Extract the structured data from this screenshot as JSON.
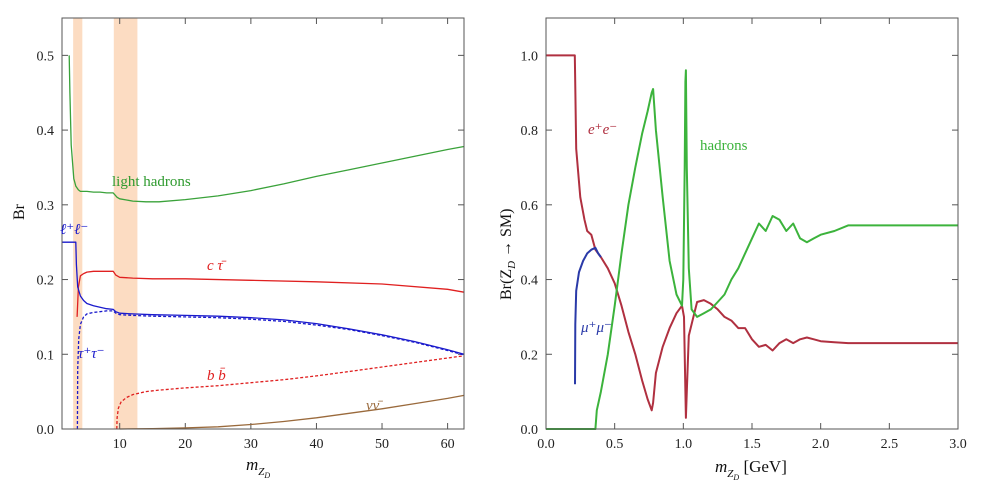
{
  "chart_data": [
    {
      "id": "left",
      "type": "line",
      "xlabel": "m_{Z_D}",
      "ylabel": "Br",
      "xlim": [
        1.2,
        62.5
      ],
      "ylim": [
        0,
        0.55
      ],
      "xticks": [
        10,
        20,
        30,
        40,
        50,
        60
      ],
      "yticks": [
        0.0,
        0.1,
        0.2,
        0.3,
        0.4,
        0.5
      ],
      "xtick_labels": [
        "10",
        "20",
        "30",
        "40",
        "50",
        "60"
      ],
      "ytick_labels": [
        "0.0",
        "0.1",
        "0.2",
        "0.3",
        "0.4",
        "0.5"
      ],
      "shaded_bands": [
        {
          "from": 2.9,
          "to": 4.3
        },
        {
          "from": 9.1,
          "to": 12.7
        }
      ],
      "band_color": "#fcdcc2",
      "series": [
        {
          "label": "light hadrons",
          "color": "#3aa23a",
          "dash": false,
          "x": [
            2.3,
            2.4,
            2.6,
            3.0,
            3.3,
            3.7,
            4.0,
            5,
            6,
            7,
            8,
            9.0,
            9.6,
            10,
            12,
            14,
            16,
            20,
            25,
            30,
            35,
            40,
            45,
            50,
            55,
            60,
            62.5
          ],
          "y": [
            0.5,
            0.45,
            0.38,
            0.335,
            0.325,
            0.32,
            0.318,
            0.318,
            0.317,
            0.317,
            0.316,
            0.316,
            0.31,
            0.308,
            0.305,
            0.304,
            0.304,
            0.307,
            0.312,
            0.319,
            0.328,
            0.338,
            0.347,
            0.356,
            0.365,
            0.374,
            0.378
          ]
        },
        {
          "label": "c τ̄",
          "color": "#e02020",
          "dash": false,
          "x": [
            3.5,
            3.7,
            4.0,
            4.5,
            5,
            6,
            7,
            8,
            9.0,
            9.4,
            10,
            12,
            15,
            20,
            30,
            40,
            50,
            60,
            62.5
          ],
          "y": [
            0.15,
            0.19,
            0.205,
            0.208,
            0.21,
            0.211,
            0.211,
            0.211,
            0.211,
            0.206,
            0.203,
            0.202,
            0.201,
            0.201,
            0.199,
            0.197,
            0.194,
            0.187,
            0.183
          ]
        },
        {
          "label": "ℓ⁺ℓ⁻",
          "color": "#1a1acc",
          "dash": false,
          "x": [
            1.2,
            3.3,
            3.4,
            3.6,
            4.0,
            4.5,
            5,
            6,
            7,
            8,
            9.0,
            9.4,
            10,
            12,
            15,
            20,
            25,
            30,
            35,
            40,
            45,
            50,
            55,
            60,
            62.5
          ],
          "y": [
            0.25,
            0.25,
            0.22,
            0.19,
            0.178,
            0.172,
            0.168,
            0.165,
            0.163,
            0.161,
            0.16,
            0.157,
            0.155,
            0.154,
            0.153,
            0.152,
            0.151,
            0.149,
            0.146,
            0.141,
            0.134,
            0.126,
            0.117,
            0.106,
            0.1
          ]
        },
        {
          "label": "τ⁺τ⁻",
          "color": "#1a1acc",
          "dash": true,
          "x": [
            3.55,
            3.6,
            3.75,
            4.0,
            4.5,
            5,
            6,
            7,
            8,
            9.0,
            9.4,
            10,
            12,
            15,
            20,
            25,
            30,
            35,
            40,
            45,
            50,
            55,
            60,
            62.5
          ],
          "y": [
            0.0,
            0.08,
            0.12,
            0.14,
            0.15,
            0.154,
            0.156,
            0.157,
            0.158,
            0.158,
            0.155,
            0.153,
            0.152,
            0.151,
            0.15,
            0.149,
            0.147,
            0.144,
            0.139,
            0.133,
            0.125,
            0.116,
            0.105,
            0.099
          ]
        },
        {
          "label": "b b̄",
          "color": "#e02020",
          "dash": true,
          "x": [
            9.55,
            9.6,
            9.8,
            10.2,
            11,
            12,
            14,
            16,
            20,
            25,
            30,
            35,
            40,
            45,
            50,
            55,
            60,
            62.5
          ],
          "y": [
            0.0,
            0.015,
            0.028,
            0.036,
            0.042,
            0.046,
            0.05,
            0.052,
            0.055,
            0.058,
            0.062,
            0.066,
            0.071,
            0.077,
            0.083,
            0.089,
            0.095,
            0.098
          ]
        },
        {
          "label": "νν̄",
          "color": "#9a6a3c",
          "dash": false,
          "x": [
            10,
            15,
            20,
            25,
            30,
            35,
            40,
            45,
            50,
            55,
            60,
            62.5
          ],
          "y": [
            0.0,
            0.0005,
            0.0015,
            0.003,
            0.006,
            0.01,
            0.015,
            0.021,
            0.027,
            0.034,
            0.041,
            0.045
          ]
        }
      ]
    },
    {
      "id": "right",
      "type": "line",
      "xlabel": "m_{Z_D} [GeV]",
      "ylabel": "Br(Z_D → SM)",
      "xlim": [
        0,
        3.0
      ],
      "ylim": [
        0,
        1.1
      ],
      "xticks": [
        0.0,
        0.5,
        1.0,
        1.5,
        2.0,
        2.5,
        3.0
      ],
      "yticks": [
        0.0,
        0.2,
        0.4,
        0.6,
        0.8,
        1.0
      ],
      "xtick_labels": [
        "0.0",
        "0.5",
        "1.0",
        "1.5",
        "2.0",
        "2.5",
        "3.0"
      ],
      "ytick_labels": [
        "0.0",
        "0.2",
        "0.4",
        "0.6",
        "0.8",
        "1.0"
      ],
      "series": [
        {
          "label": "e⁺e⁻",
          "color": "#b03040",
          "dash": false,
          "x": [
            0.0,
            0.21,
            0.212,
            0.22,
            0.25,
            0.28,
            0.3,
            0.33,
            0.36,
            0.4,
            0.45,
            0.5,
            0.55,
            0.6,
            0.65,
            0.7,
            0.74,
            0.77,
            0.78,
            0.8,
            0.85,
            0.9,
            0.95,
            0.99,
            1.005,
            1.015,
            1.019,
            1.025,
            1.04,
            1.08,
            1.1,
            1.15,
            1.2,
            1.25,
            1.3,
            1.35,
            1.4,
            1.45,
            1.5,
            1.55,
            1.6,
            1.65,
            1.7,
            1.75,
            1.8,
            1.85,
            1.9,
            1.95,
            2.0,
            2.1,
            2.2,
            2.5,
            3.0
          ],
          "y": [
            1.0,
            1.0,
            0.95,
            0.75,
            0.62,
            0.56,
            0.53,
            0.52,
            0.48,
            0.46,
            0.43,
            0.39,
            0.33,
            0.26,
            0.2,
            0.13,
            0.08,
            0.05,
            0.07,
            0.15,
            0.22,
            0.27,
            0.31,
            0.33,
            0.3,
            0.1,
            0.03,
            0.1,
            0.25,
            0.31,
            0.34,
            0.345,
            0.335,
            0.32,
            0.3,
            0.29,
            0.27,
            0.27,
            0.24,
            0.22,
            0.225,
            0.21,
            0.23,
            0.24,
            0.23,
            0.24,
            0.245,
            0.24,
            0.235,
            0.232,
            0.23,
            0.23,
            0.23
          ]
        },
        {
          "label": "μ⁺μ⁻",
          "color": "#2a3aa8",
          "dash": false,
          "x": [
            0.211,
            0.213,
            0.22,
            0.24,
            0.27,
            0.3,
            0.33,
            0.36,
            0.38,
            0.4
          ],
          "y": [
            0.12,
            0.28,
            0.37,
            0.42,
            0.45,
            0.47,
            0.48,
            0.485,
            0.47,
            0.46
          ]
        },
        {
          "label": "hadrons",
          "color": "#3cb33c",
          "dash": false,
          "x": [
            0.0,
            0.36,
            0.37,
            0.4,
            0.45,
            0.5,
            0.55,
            0.6,
            0.65,
            0.7,
            0.74,
            0.77,
            0.78,
            0.8,
            0.85,
            0.9,
            0.95,
            0.99,
            1.0,
            1.01,
            1.015,
            1.019,
            1.025,
            1.04,
            1.06,
            1.1,
            1.15,
            1.2,
            1.25,
            1.3,
            1.35,
            1.4,
            1.45,
            1.5,
            1.55,
            1.6,
            1.65,
            1.7,
            1.75,
            1.8,
            1.85,
            1.9,
            1.95,
            2.0,
            2.1,
            2.2,
            2.5,
            3.0
          ],
          "y": [
            0.0,
            0.0,
            0.05,
            0.1,
            0.2,
            0.33,
            0.47,
            0.6,
            0.7,
            0.79,
            0.85,
            0.9,
            0.91,
            0.8,
            0.62,
            0.45,
            0.36,
            0.33,
            0.4,
            0.7,
            0.93,
            0.96,
            0.7,
            0.43,
            0.32,
            0.3,
            0.31,
            0.32,
            0.34,
            0.36,
            0.4,
            0.43,
            0.47,
            0.51,
            0.55,
            0.53,
            0.57,
            0.56,
            0.53,
            0.55,
            0.51,
            0.5,
            0.51,
            0.52,
            0.53,
            0.545,
            0.545,
            0.545
          ]
        }
      ]
    }
  ],
  "labels": {
    "left": {
      "light_hadrons": "light hadrons",
      "c_tau": "c τ̄",
      "l_plus_l_minus": "ℓ⁺ℓ⁻",
      "tau_tau": "τ⁺τ⁻",
      "b_b": "b b̄",
      "nu_nu": "νν̄",
      "ylabel": "Br",
      "xlabel_main": "m",
      "xlabel_sub": "Z",
      "xlabel_subsub": "D"
    },
    "right": {
      "ee": "e⁺e⁻",
      "mumu": "μ⁺μ⁻",
      "hadrons": "hadrons",
      "ylabel": "Br(Z",
      "ylabel_sub": "D",
      "ylabel_tail": " → SM)",
      "xlabel_main": "m",
      "xlabel_sub": "Z",
      "xlabel_subsub": "D",
      "xlabel_unit": " [GeV]"
    }
  }
}
